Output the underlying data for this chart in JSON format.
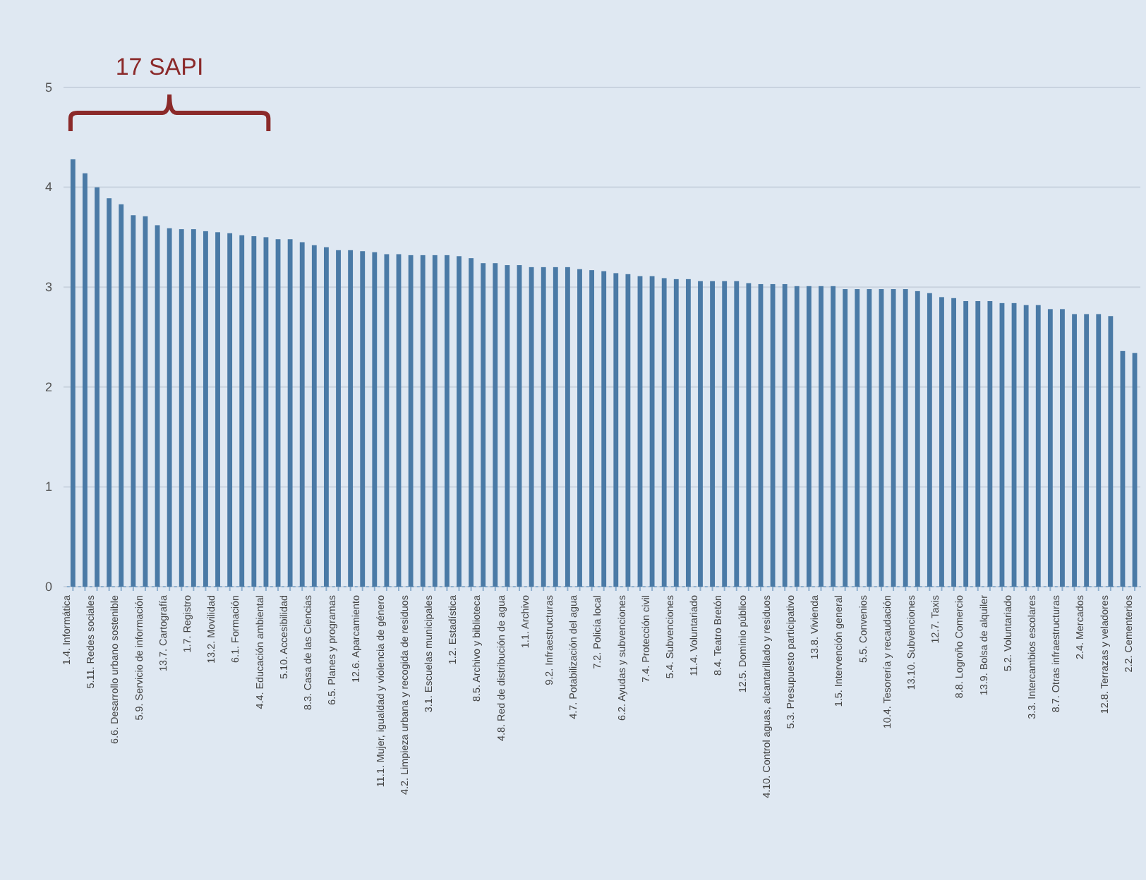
{
  "chart_data": {
    "type": "bar",
    "categories": [
      "1.4. Informática",
      null,
      "5.11. Redes sociales",
      null,
      "6.6. Desarrollo urbano sostenible",
      null,
      "5.9. Servicio de información",
      null,
      "13.7. Cartografía",
      null,
      "1.7. Registro",
      null,
      "13.2. Movilidad",
      null,
      "6.1. Formación",
      null,
      "4.4. Educación ambiental",
      null,
      "5.10. Accesibilidad",
      null,
      "8.3. Casa de las Ciencias",
      null,
      "6.5. Planes y programas",
      null,
      "12.6. Aparcamiento",
      null,
      "11.1. Mujer, igualdad y violencia de género",
      null,
      "4.2. Limpieza urbana y recogida de residuos",
      null,
      "3.1. Escuelas municipales",
      null,
      "1.2. Estadística",
      null,
      "8.5. Archivo y biblioteca",
      null,
      "4.8. Red de distribución de agua",
      null,
      "1.1. Archivo",
      null,
      "9.2. Infraestructuras",
      null,
      "4.7. Potabilización del agua",
      null,
      "7.2. Policía local",
      null,
      "6.2. Ayudas y subvenciones",
      null,
      "7.4. Protección civil",
      null,
      "5.4. Subvenciones",
      null,
      "11.4. Voluntariado",
      null,
      "8.4. Teatro Bretón",
      null,
      "12.5. Dominio público",
      null,
      "4.10. Control aguas, alcantarillado y  residuos",
      null,
      "5.3. Presupuesto participativo",
      null,
      "13.8. Vivienda",
      null,
      "1.5. Intervención general",
      null,
      "5.5. Convenios",
      null,
      "10.4. Tesorería y recaudación",
      null,
      "13.10. Subvenciones",
      null,
      "12.7. Taxis",
      null,
      "8.8. Logroño Comercio",
      null,
      "13.9. Bolsa de alquiler",
      null,
      "5.2. Voluntariado",
      null,
      "3.3. Intercambios escolares",
      null,
      "8.7. Otras infraestructuras",
      null,
      "2.4. Mercados",
      null,
      "12.8. Terrazas y veladores",
      null,
      "2.2. Cementerios"
    ],
    "values": [
      4.28,
      4.14,
      4.0,
      3.89,
      3.83,
      3.72,
      3.71,
      3.62,
      3.59,
      3.58,
      3.58,
      3.56,
      3.55,
      3.54,
      3.52,
      3.51,
      3.5,
      3.48,
      3.48,
      3.45,
      3.42,
      3.4,
      3.37,
      3.37,
      3.36,
      3.35,
      3.33,
      3.33,
      3.32,
      3.32,
      3.32,
      3.32,
      3.31,
      3.29,
      3.24,
      3.24,
      3.22,
      3.22,
      3.2,
      3.2,
      3.2,
      3.2,
      3.18,
      3.17,
      3.16,
      3.14,
      3.13,
      3.11,
      3.11,
      3.09,
      3.08,
      3.08,
      3.06,
      3.06,
      3.06,
      3.06,
      3.04,
      3.03,
      3.03,
      3.03,
      3.01,
      3.01,
      3.01,
      3.01,
      2.98,
      2.98,
      2.98,
      2.98,
      2.98,
      2.98,
      2.96,
      2.94,
      2.9,
      2.89,
      2.86,
      2.86,
      2.86,
      2.84,
      2.84,
      2.82,
      2.82,
      2.78,
      2.78,
      2.73,
      2.73,
      2.73,
      2.71,
      2.36,
      2.34
    ],
    "color": "#4a7aa6",
    "ylim": [
      0,
      5
    ],
    "yticks": [
      0,
      1,
      2,
      3,
      4,
      5
    ],
    "grid": "y",
    "annotations": [
      "17 SAPI"
    ]
  }
}
